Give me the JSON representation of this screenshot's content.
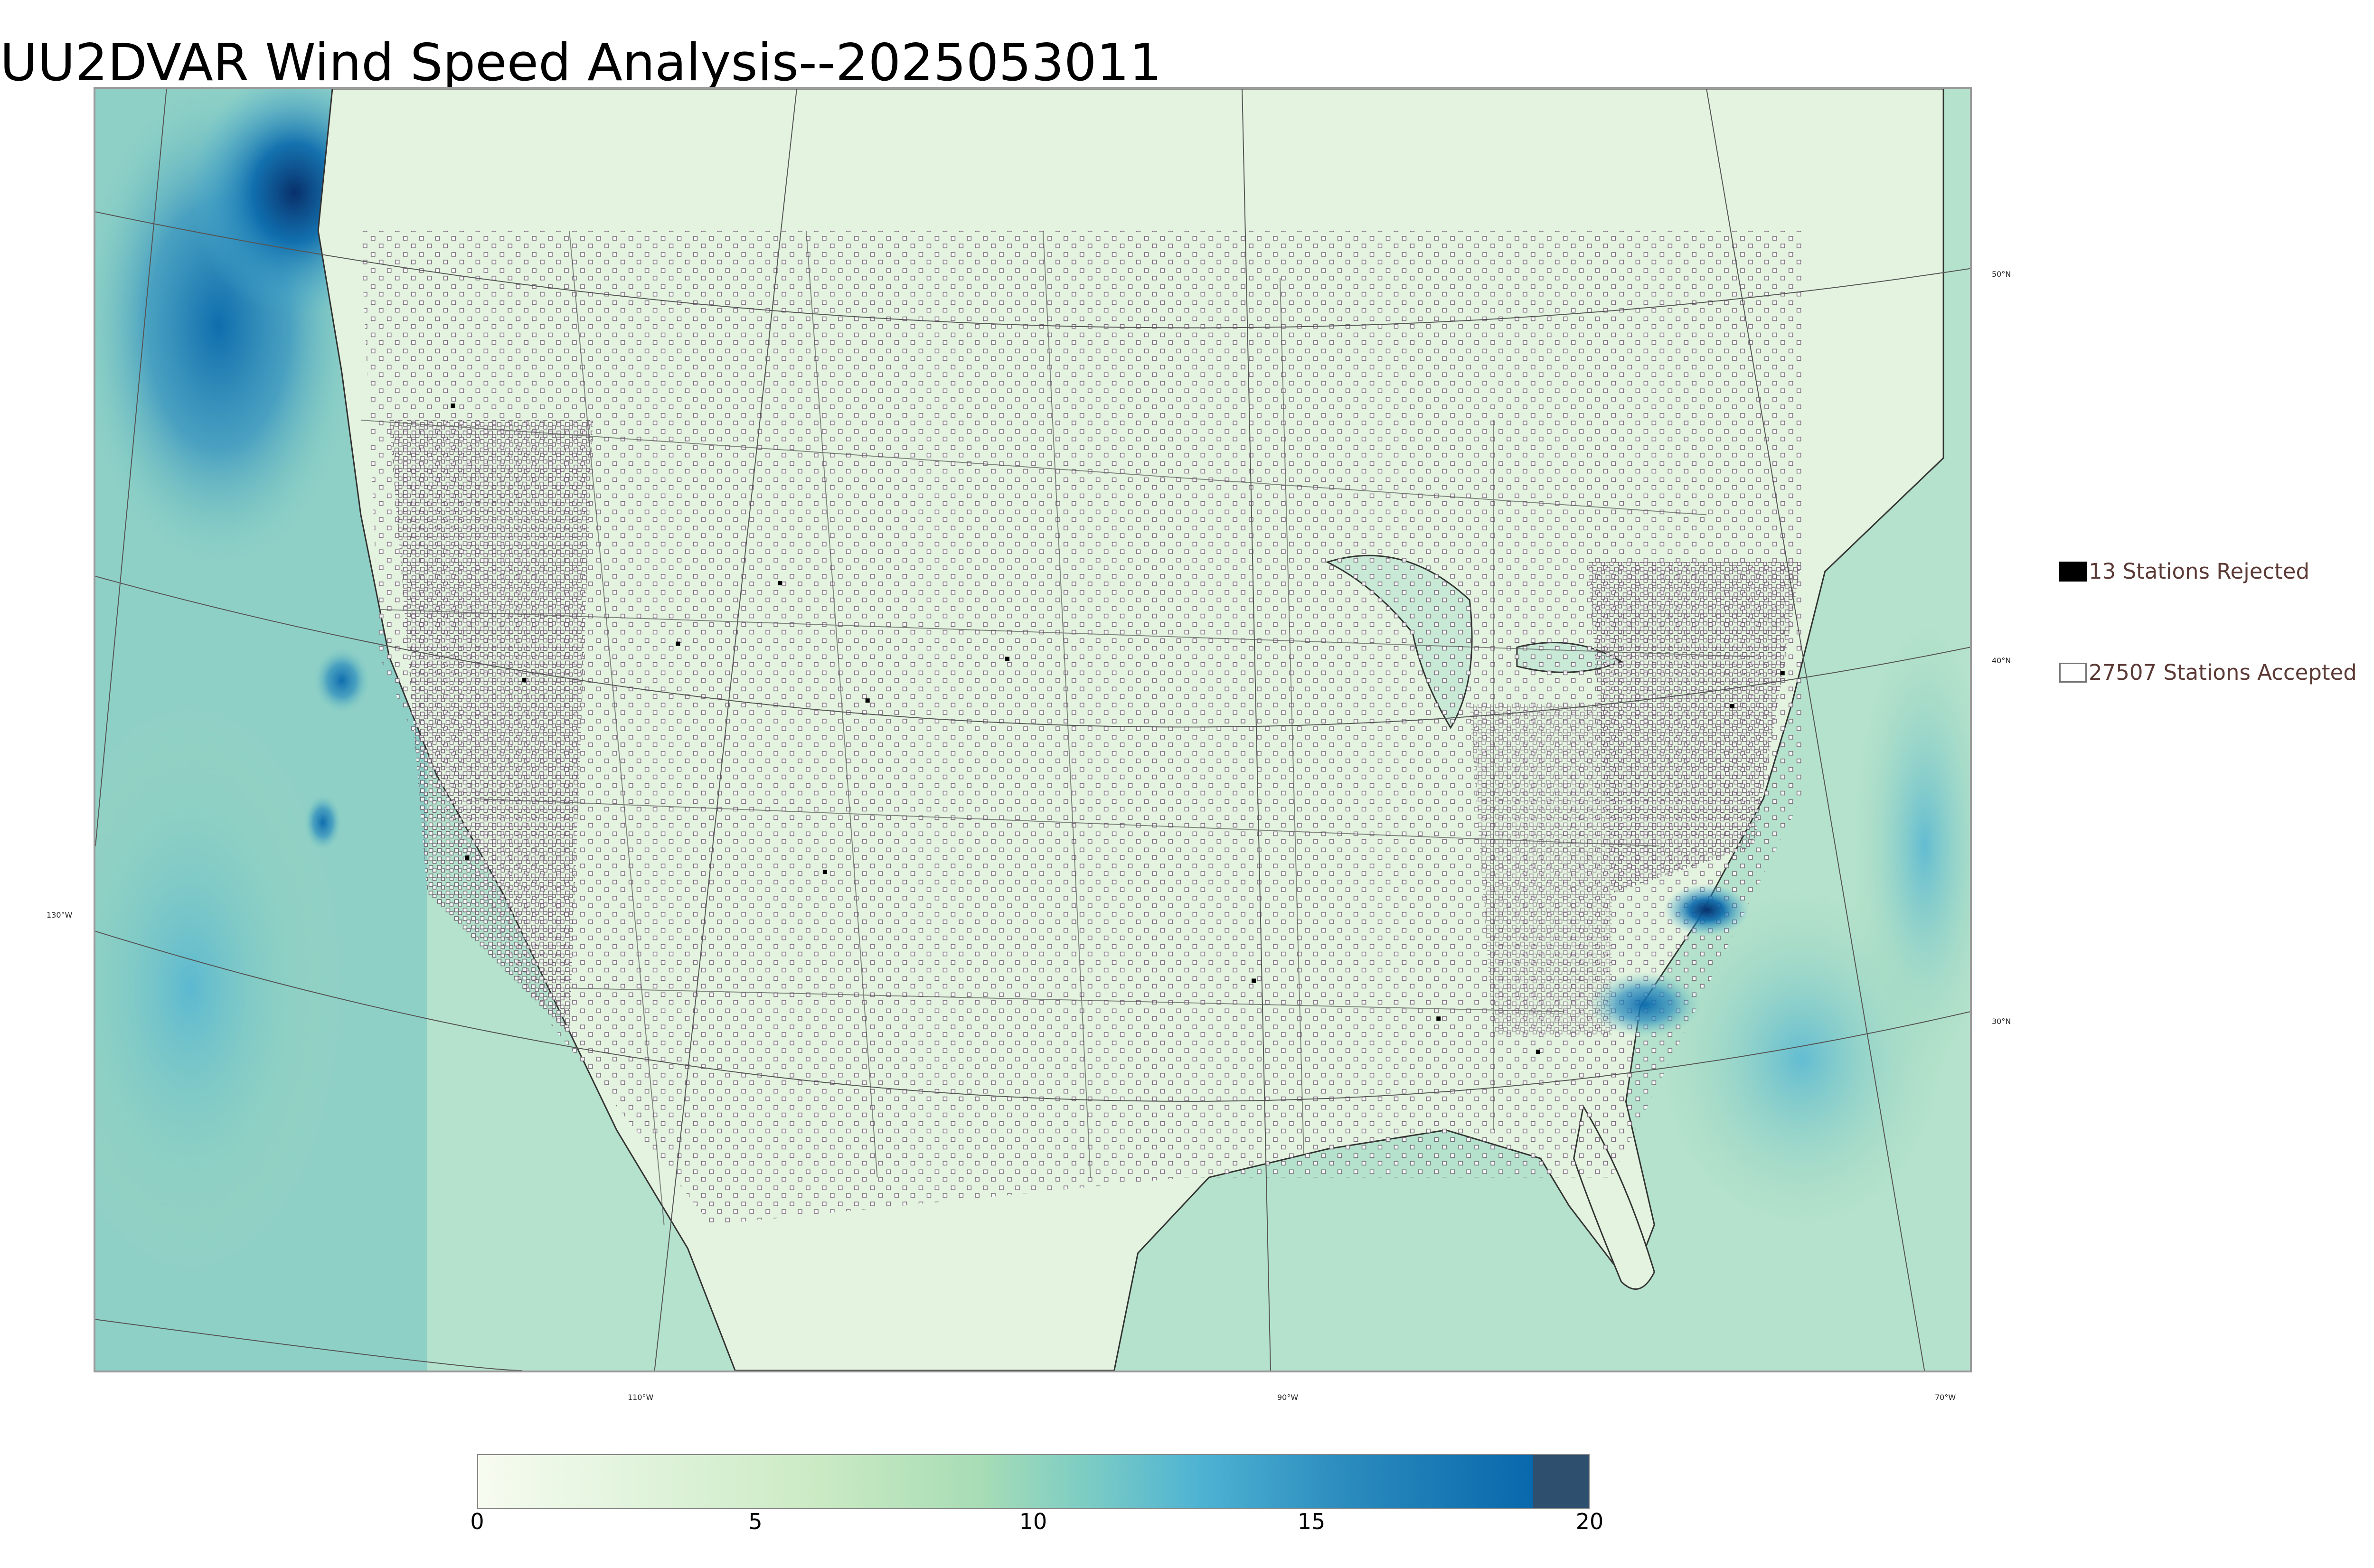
{
  "title": "UU2DVAR Wind Speed Analysis--2025053011",
  "legend": {
    "rejected": {
      "label": "13 Stations Rejected",
      "count": 13,
      "color": "#000000"
    },
    "accepted": {
      "label": "27507 Stations Accepted",
      "count": 27507,
      "color": "#ffffff"
    }
  },
  "map": {
    "lon_labels": [
      "130°W",
      "110°W",
      "90°W",
      "70°W"
    ],
    "lat_labels": [
      "50°N",
      "40°N",
      "30°N"
    ],
    "ocean_color": "#a8d9c8",
    "land_color": "#e6f4e1",
    "high_wind_color": "#1f77b4"
  },
  "colorbar": {
    "min": 0,
    "max": 20,
    "ticks": [
      "0",
      "5",
      "10",
      "15",
      "20"
    ],
    "colors": [
      "#f7fcf0",
      "#e0f3db",
      "#ccebc5",
      "#a8ddb5",
      "#7bccc4",
      "#4eb3d3",
      "#2b8cbe",
      "#0868ac",
      "#2f4f6f"
    ]
  }
}
